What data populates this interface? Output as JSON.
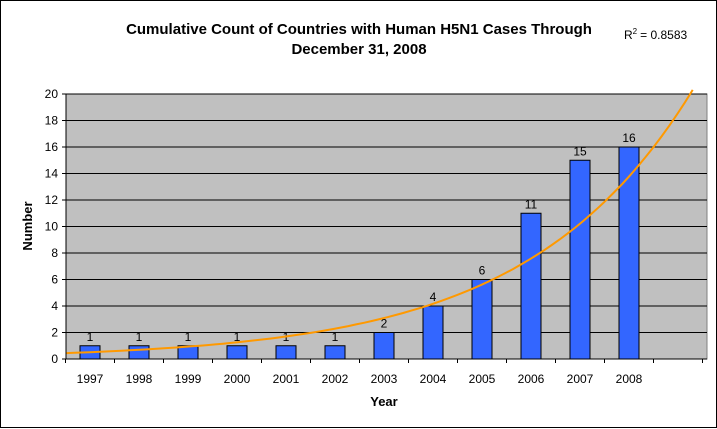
{
  "chart_data": {
    "type": "bar",
    "title_line1": "Cumulative Count of Countries with Human H5N1 Cases Through",
    "title_line2": "December 31, 2008",
    "xlabel": "Year",
    "ylabel": "Number",
    "categories": [
      "1997",
      "1998",
      "1999",
      "2000",
      "2001",
      "2002",
      "2003",
      "2004",
      "2005",
      "2006",
      "2007",
      "2008"
    ],
    "values": [
      1,
      1,
      1,
      1,
      1,
      1,
      2,
      4,
      6,
      11,
      15,
      16
    ],
    "data_labels": [
      "1",
      "1",
      "1",
      "1",
      "1",
      "1",
      "2",
      "4",
      "6",
      "11",
      "15",
      "16"
    ],
    "ylim": [
      0,
      20
    ],
    "yticks": [
      "0",
      "2",
      "4",
      "6",
      "8",
      "10",
      "12",
      "14",
      "16",
      "18",
      "20"
    ],
    "grid": true,
    "bar_color": "#3366ff",
    "plot_background": "#c0c0c0",
    "trendline": {
      "type": "exponential",
      "color": "#ff9900",
      "r2_prefix": "R",
      "r2_sup": "2",
      "r2_value": "= 0.8583"
    }
  }
}
